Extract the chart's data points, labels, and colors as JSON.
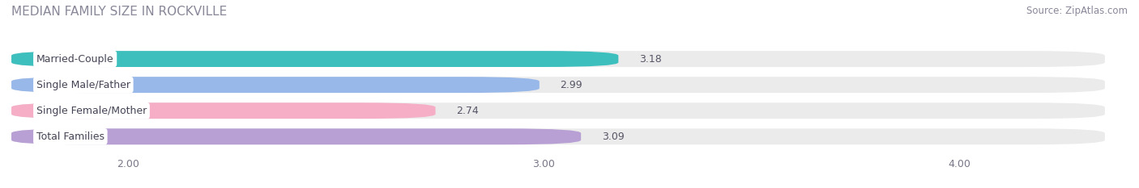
{
  "title": "MEDIAN FAMILY SIZE IN ROCKVILLE",
  "source": "Source: ZipAtlas.com",
  "categories": [
    "Married-Couple",
    "Single Male/Father",
    "Single Female/Mother",
    "Total Families"
  ],
  "values": [
    3.18,
    2.99,
    2.74,
    3.09
  ],
  "bar_colors": [
    "#3dbfbe",
    "#97b8e8",
    "#f5aec5",
    "#b89fd4"
  ],
  "xticks": [
    2.0,
    3.0,
    4.0
  ],
  "xtick_labels": [
    "2.00",
    "3.00",
    "4.00"
  ],
  "xmin": 1.72,
  "xmax": 4.35,
  "bar_height": 0.62,
  "label_fontsize": 9,
  "value_fontsize": 9,
  "title_fontsize": 11,
  "source_fontsize": 8.5,
  "bg_color": "#ffffff",
  "bar_bg_color": "#ebebeb",
  "title_color": "#888899",
  "source_color": "#888899",
  "value_color": "#555566",
  "label_color": "#444455"
}
